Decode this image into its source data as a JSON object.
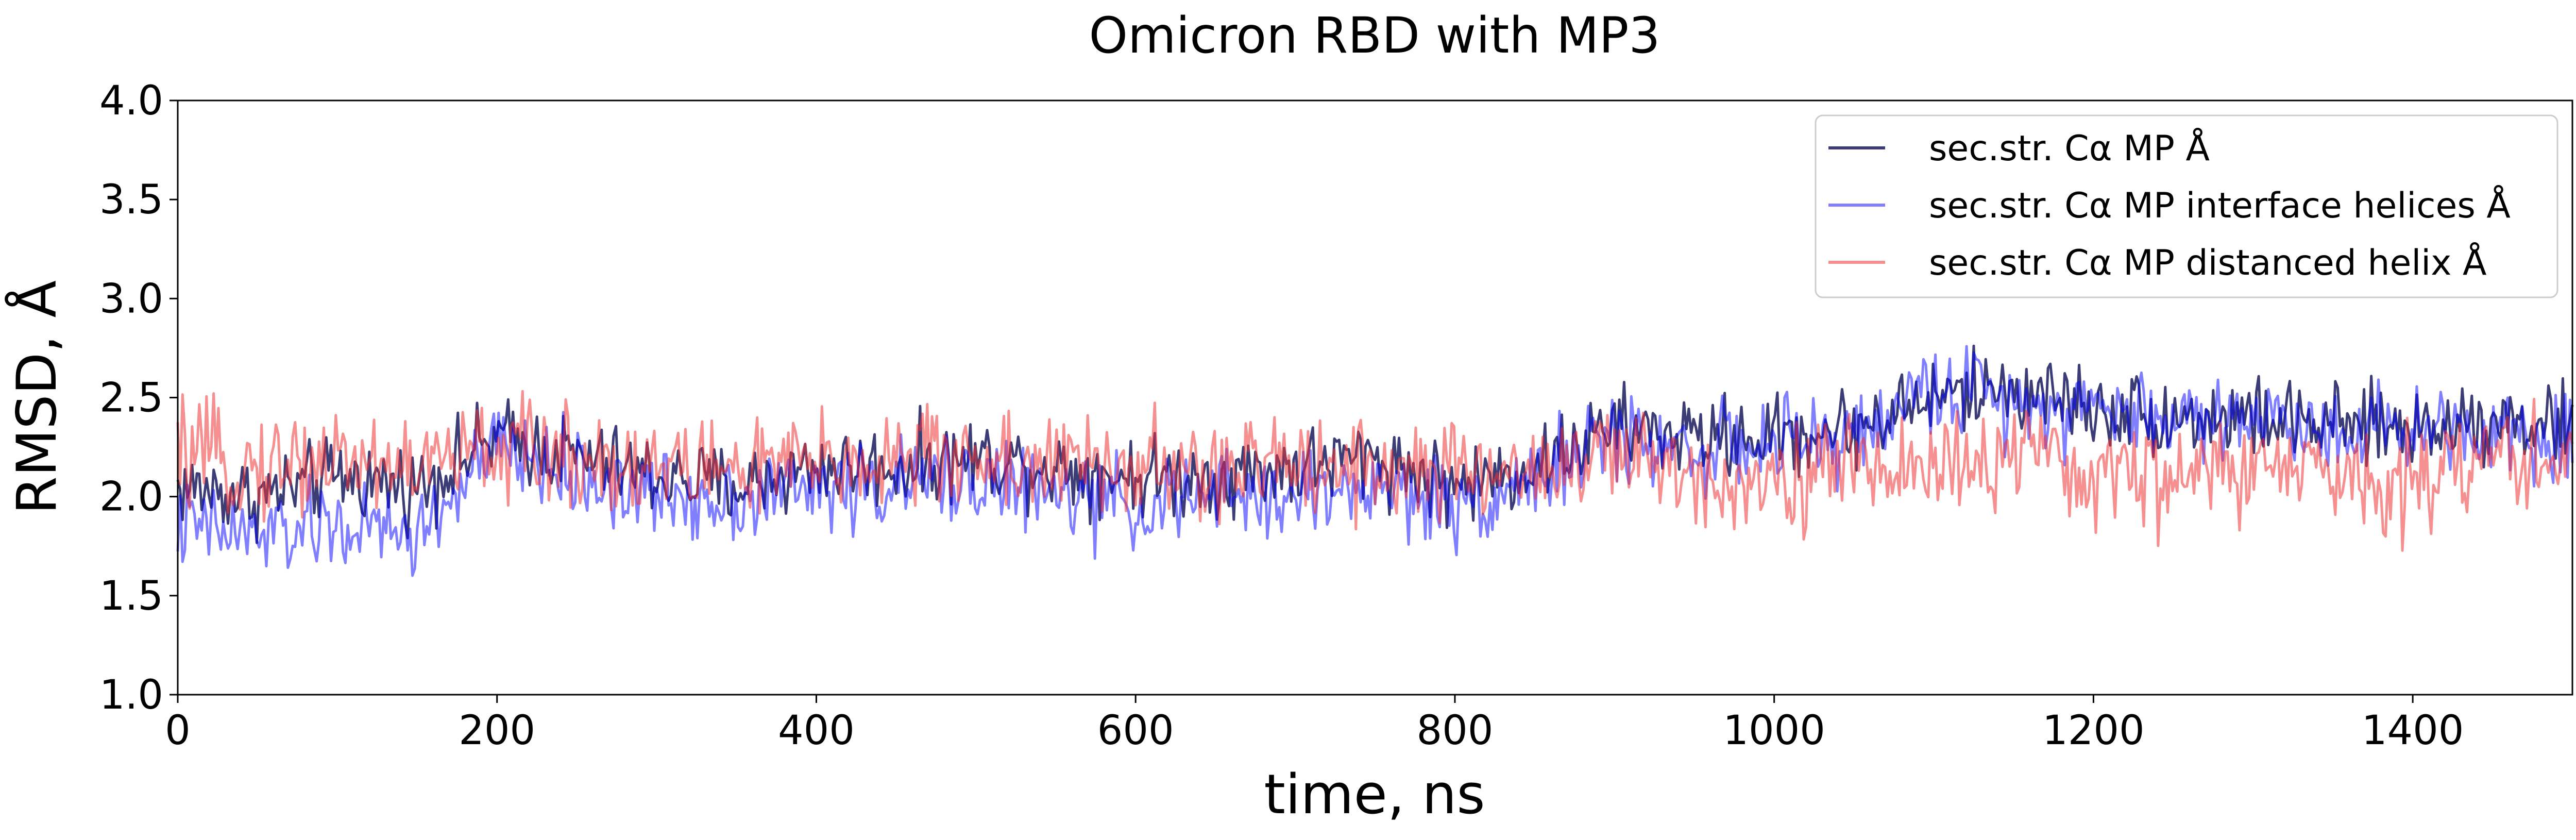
{
  "chart_data": {
    "type": "line",
    "title": "Omicron RBD with MP3",
    "xlabel": "time, ns",
    "ylabel": "RMSD, Å",
    "xlim": [
      0,
      1500
    ],
    "ylim": [
      1.0,
      4.0
    ],
    "xticks": [
      0,
      200,
      400,
      600,
      800,
      1000,
      1200,
      1400
    ],
    "xtick_labels": [
      "0",
      "200",
      "400",
      "600",
      "800",
      "1000",
      "1200",
      "1400"
    ],
    "yticks": [
      1.0,
      1.5,
      2.0,
      2.5,
      3.0,
      3.5,
      4.0
    ],
    "ytick_labels": [
      "1.0",
      "1.5",
      "2.0",
      "2.5",
      "3.0",
      "3.5",
      "4.0"
    ],
    "grid": false,
    "legend_position": "top-right",
    "series": [
      {
        "name": "sec.str. Cα MP Å",
        "color": "#1a1a5e",
        "x": [
          0,
          50,
          100,
          150,
          200,
          250,
          300,
          350,
          400,
          450,
          500,
          550,
          600,
          650,
          700,
          750,
          800,
          850,
          900,
          950,
          1000,
          1050,
          1100,
          1150,
          1200,
          1250,
          1300,
          1350,
          1400,
          1450,
          1500
        ],
        "y": [
          2.05,
          2.0,
          2.1,
          2.05,
          2.3,
          2.2,
          2.1,
          2.05,
          2.15,
          2.15,
          2.2,
          2.15,
          2.1,
          2.1,
          2.15,
          2.2,
          2.05,
          2.15,
          2.35,
          2.3,
          2.3,
          2.35,
          2.5,
          2.55,
          2.45,
          2.4,
          2.4,
          2.35,
          2.35,
          2.4,
          2.35
        ]
      },
      {
        "name": "sec.str. Cα MP interface helices Å",
        "color": "#0000ff",
        "x": [
          0,
          50,
          100,
          150,
          200,
          250,
          300,
          350,
          400,
          450,
          500,
          550,
          600,
          650,
          700,
          750,
          800,
          850,
          900,
          950,
          1000,
          1050,
          1100,
          1150,
          1200,
          1250,
          1300,
          1350,
          1400,
          1450,
          1500
        ],
        "y": [
          1.85,
          1.8,
          1.85,
          1.8,
          2.25,
          2.1,
          2.0,
          2.0,
          2.05,
          2.05,
          2.1,
          2.0,
          1.95,
          2.0,
          2.0,
          2.05,
          1.95,
          2.1,
          2.3,
          2.25,
          2.25,
          2.3,
          2.55,
          2.5,
          2.45,
          2.4,
          2.4,
          2.35,
          2.35,
          2.35,
          2.3
        ]
      },
      {
        "name": "sec.str. Cα MP distanced helix Å",
        "color": "#ee3333",
        "x": [
          0,
          50,
          100,
          150,
          200,
          250,
          300,
          350,
          400,
          450,
          500,
          550,
          600,
          650,
          700,
          750,
          800,
          850,
          900,
          950,
          1000,
          1050,
          1100,
          1150,
          1200,
          1250,
          1300,
          1350,
          1400,
          1450,
          1500
        ],
        "y": [
          2.2,
          2.15,
          2.2,
          2.15,
          2.25,
          2.2,
          2.15,
          2.15,
          2.15,
          2.2,
          2.2,
          2.15,
          2.15,
          2.1,
          2.2,
          2.15,
          2.1,
          2.15,
          2.2,
          2.1,
          2.1,
          2.15,
          2.15,
          2.2,
          2.1,
          2.1,
          2.15,
          2.1,
          2.1,
          2.2,
          2.2
        ]
      }
    ]
  }
}
